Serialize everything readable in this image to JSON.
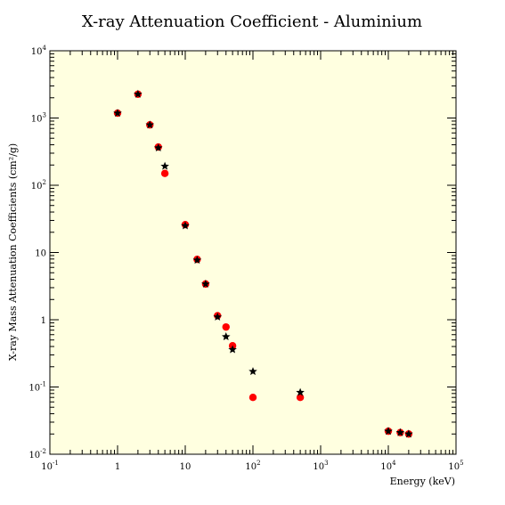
{
  "chart_data": {
    "type": "scatter",
    "title": "X-ray Attenuation Coefficient - Aluminium",
    "xlabel": "Energy (keV)",
    "ylabel": "X-ray Mass Attenuation Coefficients (cm²/g)",
    "x_scale": "log",
    "y_scale": "log",
    "xlim": [
      0.1,
      100000
    ],
    "ylim": [
      0.01,
      10000
    ],
    "grid": false,
    "colors": {
      "plot_background": "#ffffe0",
      "circle_series": "#ff0000",
      "star_series": "#000000"
    },
    "x_tick_labels": [
      {
        "value": 0.1,
        "mantissa": "10",
        "exp": "-1"
      },
      {
        "value": 1,
        "mantissa": "1",
        "exp": ""
      },
      {
        "value": 10,
        "mantissa": "10",
        "exp": ""
      },
      {
        "value": 100,
        "mantissa": "10",
        "exp": "2"
      },
      {
        "value": 1000,
        "mantissa": "10",
        "exp": "3"
      },
      {
        "value": 10000,
        "mantissa": "10",
        "exp": "4"
      },
      {
        "value": 100000,
        "mantissa": "10",
        "exp": "5"
      }
    ],
    "y_tick_labels": [
      {
        "value": 0.01,
        "mantissa": "10",
        "exp": "-2"
      },
      {
        "value": 0.1,
        "mantissa": "10",
        "exp": "-1"
      },
      {
        "value": 1,
        "mantissa": "1",
        "exp": ""
      },
      {
        "value": 10,
        "mantissa": "10",
        "exp": ""
      },
      {
        "value": 100,
        "mantissa": "10",
        "exp": "2"
      },
      {
        "value": 1000,
        "mantissa": "10",
        "exp": "3"
      },
      {
        "value": 10000,
        "mantissa": "10",
        "exp": "4"
      }
    ],
    "series": [
      {
        "marker": "circle",
        "color": "#ff0000",
        "points": [
          [
            1,
            1180
          ],
          [
            2,
            2260
          ],
          [
            3,
            790
          ],
          [
            4,
            370
          ],
          [
            5,
            150
          ],
          [
            10,
            26
          ],
          [
            15,
            7.9
          ],
          [
            20,
            3.4
          ],
          [
            30,
            1.15
          ],
          [
            40,
            0.78
          ],
          [
            50,
            0.41
          ],
          [
            100,
            0.07
          ],
          [
            500,
            0.07
          ],
          [
            10000,
            0.022
          ],
          [
            15000,
            0.021
          ],
          [
            20000,
            0.02
          ]
        ]
      },
      {
        "marker": "star",
        "color": "#000000",
        "points": [
          [
            1,
            1180
          ],
          [
            2,
            2260
          ],
          [
            3,
            790
          ],
          [
            4,
            360
          ],
          [
            5,
            192
          ],
          [
            10,
            25
          ],
          [
            15,
            7.7
          ],
          [
            20,
            3.4
          ],
          [
            30,
            1.1
          ],
          [
            40,
            0.56
          ],
          [
            50,
            0.36
          ],
          [
            100,
            0.17
          ],
          [
            500,
            0.083
          ],
          [
            10000,
            0.022
          ],
          [
            15000,
            0.021
          ],
          [
            20000,
            0.02
          ]
        ]
      }
    ]
  }
}
